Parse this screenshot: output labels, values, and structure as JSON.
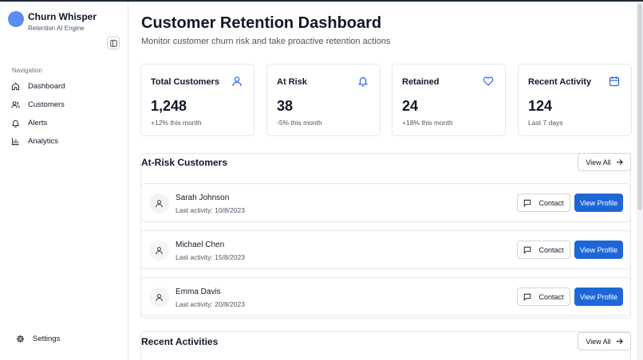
{
  "brand": {
    "name": "Churn Whisper",
    "subtitle": "Retention AI Engine"
  },
  "sidebar": {
    "heading": "Navigation",
    "items": [
      {
        "label": "Dashboard",
        "icon": "home-icon"
      },
      {
        "label": "Customers",
        "icon": "users-icon"
      },
      {
        "label": "Alerts",
        "icon": "bell-icon"
      },
      {
        "label": "Analytics",
        "icon": "bar-chart-icon"
      }
    ],
    "settings_label": "Settings"
  },
  "header": {
    "title": "Customer Retention Dashboard",
    "subtitle": "Monitor customer churn risk and take proactive retention actions"
  },
  "stats": [
    {
      "label": "Total Customers",
      "value": "1,248",
      "change": "+12% this month",
      "icon": "user-icon"
    },
    {
      "label": "At Risk",
      "value": "38",
      "change": "-5% this month",
      "icon": "bell-icon"
    },
    {
      "label": "Retained",
      "value": "24",
      "change": "+18% this month",
      "icon": "heart-icon"
    },
    {
      "label": "Recent Activity",
      "value": "124",
      "change": "Last 7 days",
      "icon": "calendar-icon"
    }
  ],
  "at_risk": {
    "title": "At-Risk Customers",
    "view_all": "View All",
    "customers": [
      {
        "name": "Sarah Johnson",
        "activity": "Last activity: 10/8/2023"
      },
      {
        "name": "Michael Chen",
        "activity": "Last activity: 15/8/2023"
      },
      {
        "name": "Emma Davis",
        "activity": "Last activity: 20/8/2023"
      }
    ],
    "contact_label": "Contact",
    "profile_label": "View Profile"
  },
  "recent": {
    "title": "Recent Activities",
    "view_all": "View All"
  },
  "colors": {
    "accent": "#1d66d8",
    "icon_blue": "#2563eb",
    "avatar": "#5b8def"
  }
}
